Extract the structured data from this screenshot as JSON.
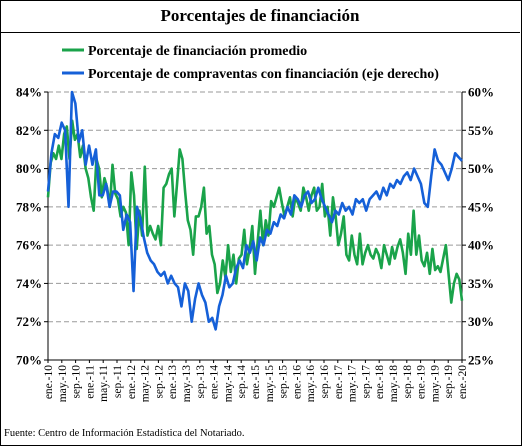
{
  "chart_data": {
    "type": "line",
    "title": "Porcentajes de financiación",
    "source": "Fuente: Centro de Información Estadística del Notariado.",
    "y_left": {
      "min": 70,
      "max": 84,
      "step": 2,
      "ticks": [
        "70%",
        "72%",
        "74%",
        "76%",
        "78%",
        "80%",
        "82%",
        "84%"
      ]
    },
    "y_right": {
      "min": 25,
      "max": 60,
      "step": 5,
      "ticks": [
        "25%",
        "30%",
        "35%",
        "40%",
        "45%",
        "50%",
        "55%",
        "60%"
      ]
    },
    "x_tick_labels": [
      "ene.-10",
      "may.-10",
      "sep.-10",
      "ene.-11",
      "may.-11",
      "sep.-11",
      "ene.-12",
      "may.-12",
      "sep.-12",
      "ene.-13",
      "may.-13",
      "sep.-13",
      "ene.-14",
      "may.-14",
      "sep.-14",
      "ene.-15",
      "may.-15",
      "sep.-15",
      "ene.-16",
      "may.-16",
      "sep.-16",
      "ene.-17",
      "may.-17",
      "sep.-17",
      "ene.-18",
      "may.-18",
      "sep.-18",
      "ene.-19",
      "may.-19",
      "sep.-19",
      "ene.-20"
    ],
    "grid": "horizontal",
    "legend_position": "top-left",
    "series": [
      {
        "name": "Porcentaje de financiación promedio",
        "axis": "left",
        "color": "#1aa34a",
        "values": [
          78.5,
          80.3,
          80.8,
          80.5,
          81.2,
          80.5,
          81.8,
          82.2,
          80.5,
          82.5,
          81.5,
          81.8,
          80.6,
          81.2,
          80.0,
          79.5,
          78.5,
          77.8,
          80.5,
          80.0,
          78.5,
          79.5,
          79.0,
          78.0,
          80.2,
          78.7,
          78.4,
          77.5,
          78.0,
          77.7,
          76.0,
          79.8,
          78.6,
          75.8,
          77.8,
          76.5,
          80.1,
          76.5,
          77.0,
          76.6,
          76.3,
          77.0,
          76.0,
          79.0,
          79.2,
          79.7,
          80.0,
          77.5,
          79.2,
          81.0,
          80.5,
          78.8,
          77.3,
          76.8,
          75.5,
          77.5,
          77.5,
          78.0,
          79.0,
          76.6,
          77.0,
          75.5,
          75.0,
          73.5,
          74.0,
          75.2,
          74.3,
          76.0,
          74.6,
          75.5,
          74.0,
          75.3,
          75.5,
          76.8,
          75.0,
          75.8,
          77.0,
          74.5,
          76.2,
          77.8,
          76.0,
          77.3,
          76.5,
          78.3,
          78.0,
          78.5,
          79.0,
          78.2,
          77.5,
          78.0,
          78.5,
          77.5,
          78.5,
          78.2,
          77.8,
          79.0,
          78.5,
          77.8,
          78.6,
          79.0,
          77.8,
          78.0,
          79.2,
          77.5,
          78.0,
          76.5,
          78.5,
          77.5,
          76.0,
          76.6,
          77.5,
          75.5,
          75.2,
          76.5,
          75.5,
          75.0,
          76.6,
          75.0,
          75.6,
          76.0,
          75.5,
          75.3,
          75.8,
          75.5,
          74.8,
          76.0,
          75.5,
          75.0,
          75.9,
          75.3,
          75.9,
          76.3,
          75.6,
          74.5,
          76.6,
          75.5,
          77.8,
          75.5,
          76.5,
          75.2,
          74.9,
          75.6,
          74.5,
          75.8,
          74.7,
          74.9,
          74.6,
          75.3,
          76.0,
          74.5,
          73.0,
          74.0,
          74.5,
          74.2,
          73.1
        ]
      },
      {
        "name": "Porcentaje de compraventas con financiación (eje derecho)",
        "axis": "right",
        "color": "#1560d8",
        "values": [
          47.0,
          52.0,
          54.5,
          54.0,
          56.0,
          55.0,
          45.0,
          60.0,
          58.5,
          53.5,
          55.0,
          50.5,
          53.0,
          50.5,
          52.5,
          46.5,
          46.5,
          48.0,
          45.0,
          47.0,
          47.0,
          46.5,
          42.0,
          44.0,
          43.0,
          34.0,
          45.0,
          43.5,
          41.0,
          39.0,
          38.0,
          37.5,
          36.5,
          36.0,
          36.5,
          35.0,
          36.0,
          35.0,
          34.5,
          32.0,
          35.0,
          34.0,
          30.0,
          33.0,
          35.0,
          33.5,
          32.5,
          30.0,
          30.5,
          29.0,
          32.0,
          33.5,
          36.0,
          34.5,
          35.0,
          37.0,
          38.0,
          37.0,
          40.0,
          39.0,
          40.5,
          38.0,
          41.0,
          40.0,
          42.0,
          41.5,
          43.0,
          42.5,
          44.0,
          43.5,
          45.0,
          44.0,
          46.5,
          46.0,
          45.0,
          46.5,
          47.0,
          45.5,
          46.0,
          47.5,
          46.0,
          45.0,
          44.0,
          43.0,
          44.5,
          44.0,
          45.5,
          44.5,
          45.0,
          44.0,
          46.0,
          45.5,
          46.0,
          44.5,
          46.0,
          46.5,
          47.0,
          46.0,
          47.5,
          46.5,
          48.0,
          47.5,
          48.5,
          48.0,
          49.0,
          49.5,
          48.5,
          50.0,
          49.0,
          48.0,
          45.5,
          45.0,
          49.0,
          52.5,
          51.0,
          50.5,
          49.5,
          48.5,
          50.0,
          52.0,
          51.5,
          51.0
        ]
      }
    ]
  }
}
